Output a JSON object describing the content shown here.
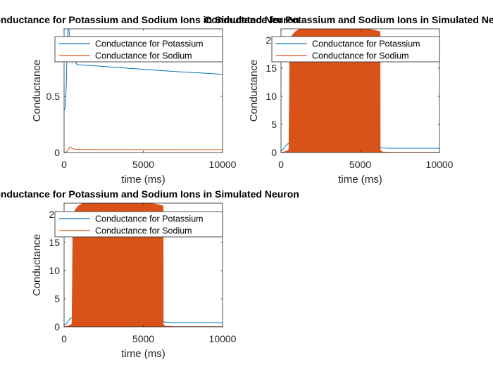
{
  "figure": {
    "background": "#ffffff"
  },
  "chart_data": [
    {
      "type": "line",
      "title": "Conductance for Potassium and Sodium Ions in Simulated Neuron",
      "xlabel": "time (ms)",
      "ylabel": "Conductance",
      "xlim": [
        0,
        10000
      ],
      "ylim": [
        0,
        1.1
      ],
      "xticks": [
        0,
        5000,
        10000
      ],
      "yticks": [
        0,
        0.5
      ],
      "grid": false,
      "legend_position": "top",
      "series": [
        {
          "name": "Conductance for Potassium",
          "color": "#0072BD",
          "points": [
            [
              0,
              0.38
            ],
            [
              80,
              0.4
            ],
            [
              140,
              0.6
            ],
            [
              190,
              0.9
            ],
            [
              230,
              1.05
            ],
            [
              270,
              1.12
            ],
            [
              310,
              1.1
            ],
            [
              350,
              0.98
            ],
            [
              400,
              0.9
            ],
            [
              450,
              0.82
            ],
            [
              500,
              0.8
            ],
            [
              560,
              0.83
            ],
            [
              620,
              0.85
            ],
            [
              680,
              0.83
            ],
            [
              760,
              0.79
            ],
            [
              900,
              0.78
            ],
            [
              1500,
              0.775
            ],
            [
              3000,
              0.76
            ],
            [
              5000,
              0.74
            ],
            [
              7000,
              0.72
            ],
            [
              9000,
              0.705
            ],
            [
              10000,
              0.695
            ]
          ]
        },
        {
          "name": "Conductance for Sodium",
          "color": "#D95319",
          "points": [
            [
              0,
              0.0
            ],
            [
              100,
              0.003
            ],
            [
              200,
              0.01
            ],
            [
              300,
              0.035
            ],
            [
              380,
              0.05
            ],
            [
              440,
              0.045
            ],
            [
              500,
              0.035
            ],
            [
              560,
              0.03
            ],
            [
              620,
              0.034
            ],
            [
              700,
              0.029
            ],
            [
              900,
              0.027
            ],
            [
              2000,
              0.026
            ],
            [
              10000,
              0.025
            ]
          ]
        }
      ]
    },
    {
      "type": "line",
      "title": "Conductance for Potassium and Sodium Ions in Simulated Neuron",
      "xlabel": "time (ms)",
      "ylabel": "Conductance",
      "xlim": [
        0,
        10000
      ],
      "ylim": [
        0,
        22
      ],
      "xticks": [
        0,
        5000,
        10000
      ],
      "yticks": [
        0,
        5,
        10,
        15,
        20
      ],
      "grid": false,
      "legend_position": "top",
      "series": [
        {
          "name": "Conductance for Potassium",
          "color": "#0072BD",
          "points": [
            [
              0,
              0.3
            ],
            [
              150,
              0.6
            ],
            [
              300,
              1.2
            ],
            [
              450,
              1.6
            ],
            [
              550,
              1.4
            ],
            [
              650,
              1.0
            ],
            [
              800,
              1.0
            ],
            [
              6250,
              1.0
            ],
            [
              6400,
              0.8
            ],
            [
              7000,
              0.75
            ],
            [
              10000,
              0.75
            ]
          ]
        },
        {
          "name": "Conductance for Sodium",
          "color": "#D95319",
          "points": [
            [
              0,
              0.0
            ],
            [
              300,
              0.2
            ],
            [
              450,
              0.4
            ],
            [
              500,
              0.6
            ],
            [
              560,
              19.5
            ],
            [
              700,
              20.8
            ],
            [
              900,
              21.5
            ],
            [
              1200,
              22.0
            ],
            [
              2000,
              22.5
            ],
            [
              3000,
              22.5
            ],
            [
              4000,
              22.4
            ],
            [
              5000,
              22.2
            ],
            [
              5800,
              21.8
            ],
            [
              6250,
              21.5
            ],
            [
              6260,
              0.4
            ],
            [
              6400,
              0.1
            ],
            [
              7000,
              0.05
            ],
            [
              10000,
              0.05
            ]
          ]
        }
      ]
    },
    {
      "type": "line",
      "title": "Conductance for Potassium and Sodium Ions in Simulated Neuron",
      "xlabel": "time (ms)",
      "ylabel": "Conductance",
      "xlim": [
        0,
        10000
      ],
      "ylim": [
        0,
        22
      ],
      "xticks": [
        0,
        5000,
        10000
      ],
      "yticks": [
        0,
        5,
        10,
        15,
        20
      ],
      "grid": false,
      "legend_position": "top",
      "series": [
        {
          "name": "Conductance for Potassium",
          "color": "#0072BD",
          "points": [
            [
              0,
              0.3
            ],
            [
              150,
              0.6
            ],
            [
              300,
              1.2
            ],
            [
              450,
              1.6
            ],
            [
              550,
              1.4
            ],
            [
              650,
              1.0
            ],
            [
              800,
              1.0
            ],
            [
              6250,
              1.0
            ],
            [
              6400,
              0.8
            ],
            [
              7000,
              0.75
            ],
            [
              10000,
              0.75
            ]
          ]
        },
        {
          "name": "Conductance for Sodium",
          "color": "#D95319",
          "points": [
            [
              0,
              0.0
            ],
            [
              300,
              0.2
            ],
            [
              450,
              0.4
            ],
            [
              500,
              0.6
            ],
            [
              560,
              19.5
            ],
            [
              700,
              20.8
            ],
            [
              900,
              21.5
            ],
            [
              1200,
              22.0
            ],
            [
              2000,
              22.5
            ],
            [
              3000,
              22.5
            ],
            [
              4000,
              22.4
            ],
            [
              5000,
              22.2
            ],
            [
              5800,
              21.8
            ],
            [
              6250,
              21.5
            ],
            [
              6260,
              0.4
            ],
            [
              6400,
              0.1
            ],
            [
              7000,
              0.05
            ],
            [
              10000,
              0.05
            ]
          ]
        }
      ]
    }
  ]
}
